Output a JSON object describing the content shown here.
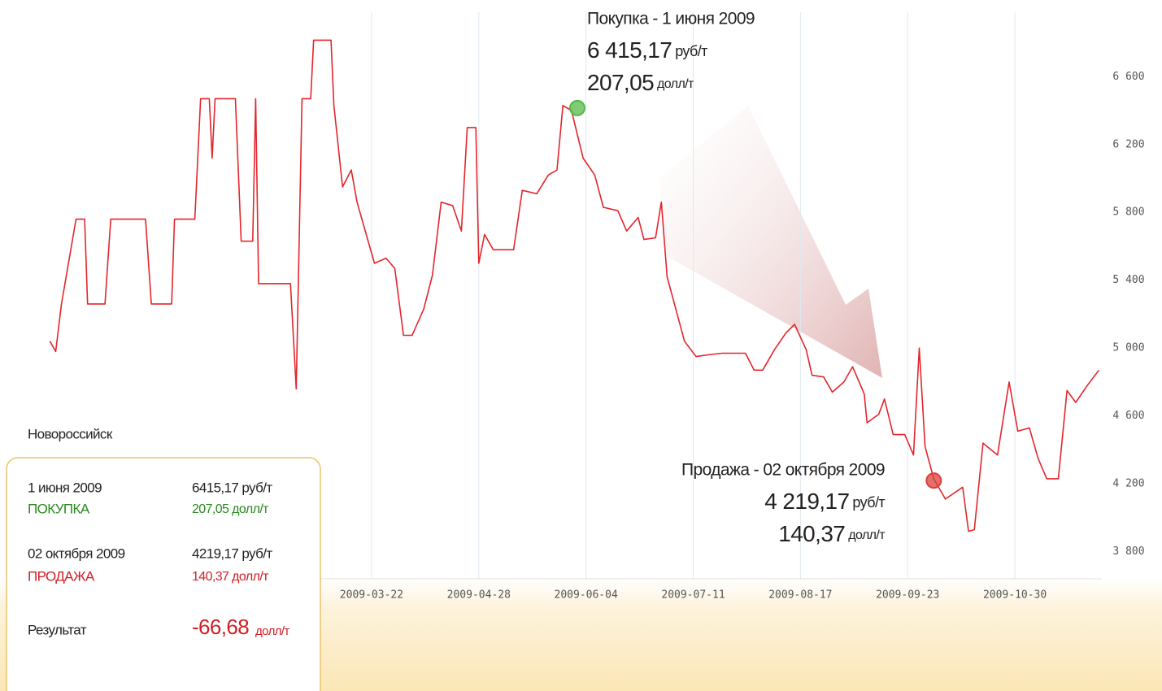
{
  "chart_data": {
    "type": "line",
    "x": [
      "2008-12-01",
      "2008-12-03",
      "2008-12-05",
      "2008-12-10",
      "2008-12-13",
      "2008-12-14",
      "2008-12-20",
      "2008-12-22",
      "2009-01-03",
      "2009-01-05",
      "2009-01-12",
      "2009-01-13",
      "2009-01-20",
      "2009-01-22",
      "2009-01-25",
      "2009-01-26",
      "2009-01-27",
      "2009-02-03",
      "2009-02-05",
      "2009-02-09",
      "2009-02-10",
      "2009-02-11",
      "2009-02-22",
      "2009-02-24",
      "2009-02-26",
      "2009-03-01",
      "2009-03-02",
      "2009-03-08",
      "2009-03-09",
      "2009-03-12",
      "2009-03-15",
      "2009-03-17",
      "2009-03-23",
      "2009-03-27",
      "2009-03-30",
      "2009-04-02",
      "2009-04-05",
      "2009-04-09",
      "2009-04-12",
      "2009-04-15",
      "2009-04-19",
      "2009-04-22",
      "2009-04-24",
      "2009-04-27",
      "2009-04-28",
      "2009-04-30",
      "2009-05-03",
      "2009-05-10",
      "2009-05-13",
      "2009-05-18",
      "2009-05-22",
      "2009-05-25",
      "2009-05-27",
      "2009-05-30",
      "2009-06-03",
      "2009-06-07",
      "2009-06-10",
      "2009-06-15",
      "2009-06-18",
      "2009-06-22",
      "2009-06-24",
      "2009-06-28",
      "2009-06-30",
      "2009-07-02",
      "2009-07-05",
      "2009-07-08",
      "2009-07-12",
      "2009-07-16",
      "2009-07-21",
      "2009-07-29",
      "2009-08-01",
      "2009-08-04",
      "2009-08-08",
      "2009-08-12",
      "2009-08-15",
      "2009-08-19",
      "2009-08-21",
      "2009-08-25",
      "2009-08-28",
      "2009-09-01",
      "2009-09-04",
      "2009-09-08",
      "2009-09-09",
      "2009-09-13",
      "2009-09-15",
      "2009-09-18",
      "2009-09-22",
      "2009-09-25",
      "2009-09-27",
      "2009-09-29",
      "2009-10-02",
      "2009-10-06",
      "2009-10-12",
      "2009-10-14",
      "2009-10-16",
      "2009-10-19",
      "2009-10-24",
      "2009-10-28",
      "2009-10-31",
      "2009-11-04",
      "2009-11-07",
      "2009-11-10",
      "2009-11-14",
      "2009-11-17",
      "2009-11-20",
      "2009-11-24",
      "2009-11-28"
    ],
    "series": [
      {
        "color": "#e3262c",
        "values": [
          5040,
          4980,
          5260,
          5760,
          5760,
          5260,
          5260,
          5760,
          5760,
          5260,
          5260,
          5760,
          5760,
          6470,
          6470,
          6120,
          6470,
          6470,
          5630,
          5630,
          6470,
          5380,
          5380,
          4760,
          6470,
          6470,
          6815,
          6815,
          6430,
          5950,
          6050,
          5860,
          5500,
          5530,
          5470,
          5075,
          5075,
          5230,
          5430,
          5860,
          5840,
          5690,
          6300,
          6300,
          5500,
          5670,
          5580,
          5580,
          5930,
          5910,
          6020,
          6050,
          6430,
          6400,
          6120,
          6020,
          5830,
          5810,
          5690,
          5770,
          5640,
          5650,
          5860,
          5420,
          5230,
          5040,
          4950,
          4960,
          4970,
          4970,
          4870,
          4870,
          4990,
          5090,
          5140,
          4990,
          4840,
          4830,
          4740,
          4800,
          4890,
          4730,
          4560,
          4610,
          4700,
          4490,
          4490,
          4370,
          5000,
          4420,
          4230,
          4110,
          4180,
          3920,
          3930,
          4440,
          4370,
          4800,
          4510,
          4530,
          4350,
          4230,
          4230,
          4750,
          4680,
          4780,
          4870
        ]
      }
    ],
    "xlim": [
      "2008-11-25",
      "2009-11-29"
    ],
    "xticks": [
      "2009-03-22",
      "2009-04-28",
      "2009-06-04",
      "2009-07-11",
      "2009-08-17",
      "2009-09-23",
      "2009-10-30"
    ],
    "ylim": [
      3640,
      6980
    ],
    "yticks": [
      {
        "value": 3800,
        "label": "3 800"
      },
      {
        "value": 4200,
        "label": "4 200"
      },
      {
        "value": 4600,
        "label": "4 600"
      },
      {
        "value": 5000,
        "label": "5 000"
      },
      {
        "value": 5400,
        "label": "5 400"
      },
      {
        "value": 5800,
        "label": "5 800"
      },
      {
        "value": 6200,
        "label": "6 200"
      },
      {
        "value": 6600,
        "label": "6 600"
      }
    ],
    "grid": true,
    "markers": [
      {
        "title": "Покупка - 1 июня 2009",
        "x": "2009-06-01",
        "value": 6415.17,
        "value_label": "6 415,17",
        "unit": "руб/т",
        "usd_label": "207,05",
        "usd_unit": "долл/т",
        "color": "#56b947"
      },
      {
        "title": "Продажа - 02 октября 2009",
        "x": "2009-10-02",
        "value": 4219.17,
        "value_label": "4 219,17",
        "unit": "руб/т",
        "usd_label": "140,37",
        "usd_unit": "долл/т",
        "color": "#d9403a"
      }
    ]
  },
  "panel": {
    "place": "Новороссийск",
    "rows": [
      {
        "date": "1 июня 2009",
        "action": "ПОКУПКА",
        "rub": "6415,17 руб/т",
        "usd": "207,05  долл/т"
      },
      {
        "date": "02 октября 2009",
        "action": "ПРОДАЖА",
        "rub": "4219,17 руб/т",
        "usd": "140,37  долл/т"
      }
    ],
    "result_label": "Результат",
    "result_value": "-66,68",
    "result_unit": "долл/т"
  }
}
